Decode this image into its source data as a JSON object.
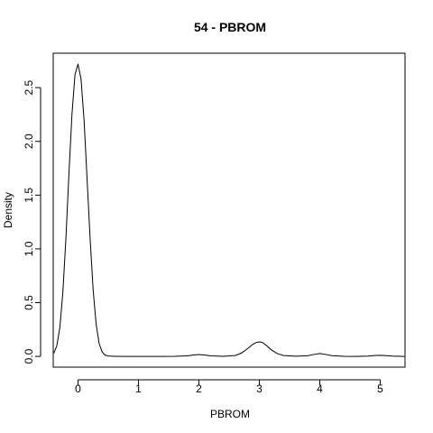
{
  "chart_data": {
    "type": "line",
    "title": "54 - PBROM",
    "xlabel": "PBROM",
    "ylabel": "Density",
    "xlim": [
      -0.41,
      5.41
    ],
    "ylim": [
      -0.1,
      2.82
    ],
    "x_ticks": [
      0,
      1,
      2,
      3,
      4,
      5
    ],
    "x_tick_labels": [
      "0",
      "1",
      "2",
      "3",
      "4",
      "5"
    ],
    "y_ticks": [
      0.0,
      0.5,
      1.0,
      1.5,
      2.0,
      2.5
    ],
    "y_tick_labels": [
      "0.0",
      "0.5",
      "1.0",
      "1.5",
      "2.0",
      "2.5"
    ],
    "grid": false,
    "line_color": "#000000",
    "series": [
      {
        "x": [
          -0.4,
          -0.35,
          -0.3,
          -0.25,
          -0.2,
          -0.15,
          -0.1,
          -0.05,
          0,
          0.05,
          0.1,
          0.15,
          0.2,
          0.25,
          0.3,
          0.35,
          0.4,
          0.45,
          0.5,
          0.6,
          0.8,
          1.0,
          1.2,
          1.4,
          1.6,
          1.8,
          1.9,
          2.0,
          2.1,
          2.2,
          2.4,
          2.6,
          2.7,
          2.8,
          2.9,
          2.95,
          3.0,
          3.05,
          3.1,
          3.2,
          3.3,
          3.4,
          3.6,
          3.8,
          3.9,
          4.0,
          4.1,
          4.2,
          4.4,
          4.6,
          4.8,
          4.9,
          5.0,
          5.1,
          5.2,
          5.4
        ],
        "y": [
          0.03,
          0.1,
          0.27,
          0.6,
          1.1,
          1.7,
          2.25,
          2.62,
          2.72,
          2.58,
          2.2,
          1.65,
          1.1,
          0.62,
          0.3,
          0.12,
          0.04,
          0.012,
          0.004,
          0.001,
          0.0,
          0.0,
          0.0,
          0.0,
          0.001,
          0.005,
          0.012,
          0.017,
          0.012,
          0.005,
          0.001,
          0.008,
          0.03,
          0.07,
          0.115,
          0.13,
          0.135,
          0.13,
          0.11,
          0.06,
          0.025,
          0.008,
          0.002,
          0.006,
          0.018,
          0.027,
          0.018,
          0.007,
          0.001,
          0.0,
          0.003,
          0.008,
          0.01,
          0.007,
          0.003,
          0.0
        ]
      }
    ]
  }
}
